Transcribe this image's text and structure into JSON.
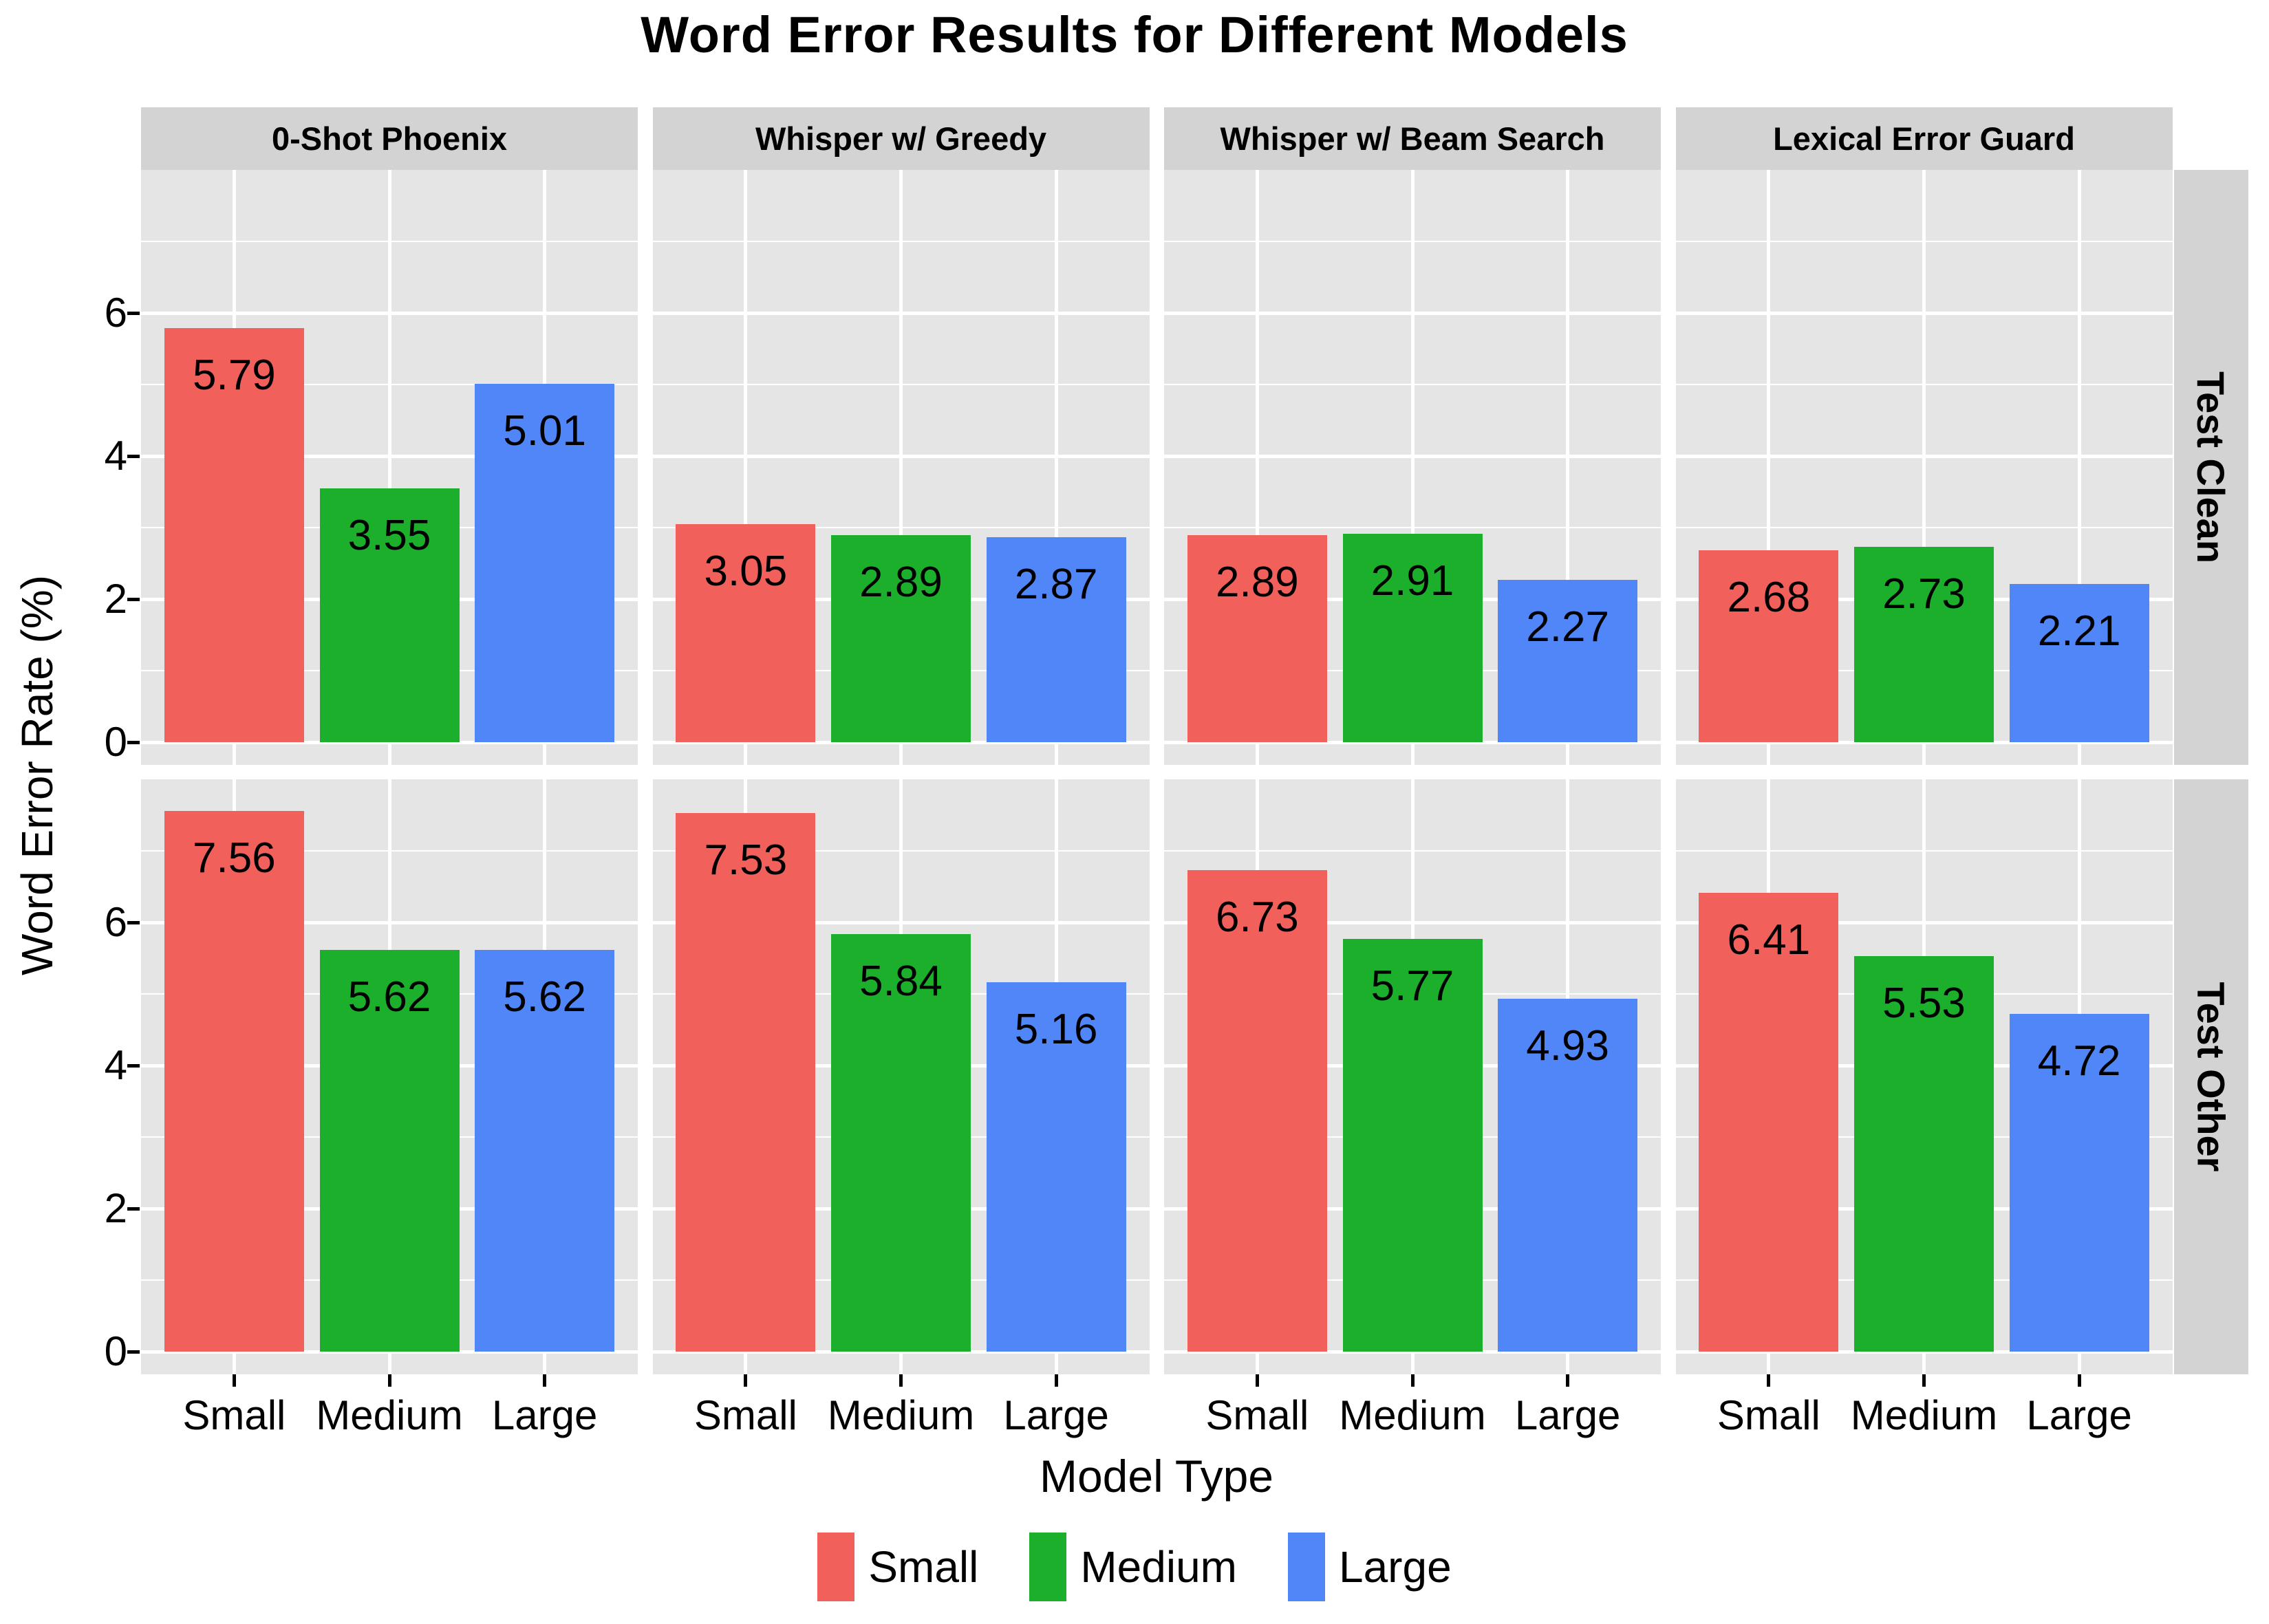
{
  "chart_data": {
    "type": "bar",
    "title": "Word Error Results for Different Models",
    "ylabel": "Word Error Rate (%)",
    "xlabel": "Model Type",
    "facet_cols": [
      "0-Shot Phoenix",
      "Whisper w/ Greedy",
      "Whisper w/ Beam Search",
      "Lexical Error Guard"
    ],
    "facet_rows": [
      "Test Clean",
      "Test Other"
    ],
    "categories": [
      "Small",
      "Medium",
      "Large"
    ],
    "legend": {
      "entries": [
        "Small",
        "Medium",
        "Large"
      ],
      "position": "bottom"
    },
    "series_colors": [
      "#F2605C",
      "#1BAF2B",
      "#5186F8"
    ],
    "panel_background": "#E5E5E5",
    "strip_background": "#D3D3D3",
    "gridline_color": "#ffffff",
    "y_ticks": [
      0,
      2,
      4,
      6
    ],
    "y_minor_ticks": [
      1,
      3,
      5,
      7
    ],
    "ylim": [
      -0.32,
      8.0
    ],
    "grid": "on",
    "rows": [
      {
        "label": "Test Clean",
        "panels": [
          {
            "col": "0-Shot Phoenix",
            "values": [
              5.79,
              3.55,
              5.01
            ]
          },
          {
            "col": "Whisper w/ Greedy",
            "values": [
              3.05,
              2.89,
              2.87
            ]
          },
          {
            "col": "Whisper w/ Beam Search",
            "values": [
              2.89,
              2.91,
              2.27
            ]
          },
          {
            "col": "Lexical Error Guard",
            "values": [
              2.68,
              2.73,
              2.21
            ]
          }
        ]
      },
      {
        "label": "Test Other",
        "panels": [
          {
            "col": "0-Shot Phoenix",
            "values": [
              7.56,
              5.62,
              5.62
            ]
          },
          {
            "col": "Whisper w/ Greedy",
            "values": [
              7.53,
              5.84,
              5.16
            ]
          },
          {
            "col": "Whisper w/ Beam Search",
            "values": [
              6.73,
              5.77,
              4.93
            ]
          },
          {
            "col": "Lexical Error Guard",
            "values": [
              6.41,
              5.53,
              4.72
            ]
          }
        ]
      }
    ]
  }
}
